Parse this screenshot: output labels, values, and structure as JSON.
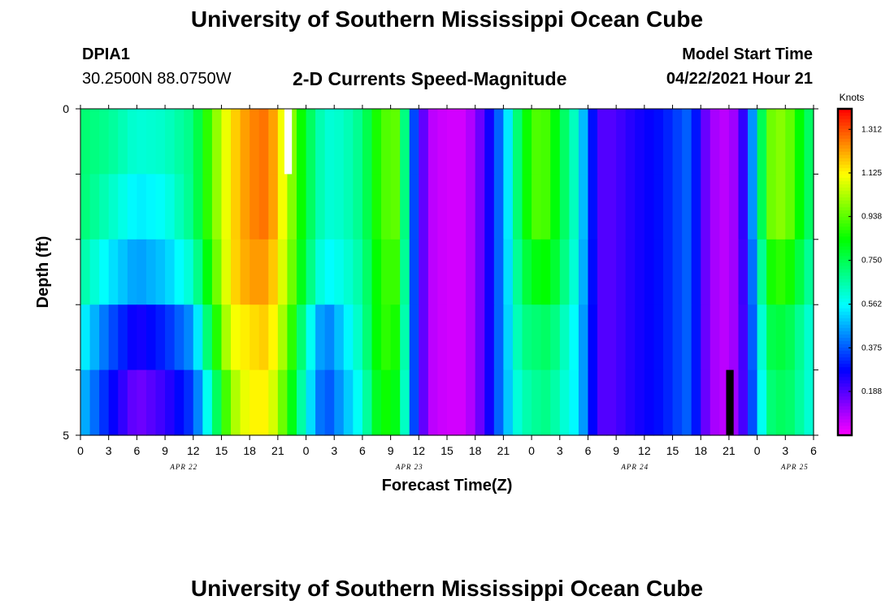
{
  "page": {
    "title_top": "University of Southern Mississippi Ocean Cube",
    "title_bottom": "University of Southern Mississippi Ocean Cube",
    "station_id": "DPIA1",
    "station_coords": "30.2500N  88.0750W",
    "model_start_label": "Model Start Time",
    "model_start_value": "04/22/2021 Hour 21"
  },
  "chart_data": {
    "type": "heatmap",
    "title": "2-D Currents Speed-Magnitude",
    "xlabel": "Forecast Time(Z)",
    "ylabel": "Depth (ft)",
    "colorbar_label": "Knots",
    "colorbar_ticks": [
      "1.312",
      "1.125",
      "0.938",
      "0.750",
      "0.562",
      "0.375",
      "0.188"
    ],
    "colorbar_tick_values": [
      1.312,
      1.125,
      0.938,
      0.75,
      0.562,
      0.375,
      0.188
    ],
    "value_range": [
      0.0,
      1.4
    ],
    "xlim": [
      0,
      78
    ],
    "ylim": [
      0,
      5
    ],
    "y_axis_inverted": true,
    "y_tick_labels": [
      "0",
      "5"
    ],
    "y_tick_values": [
      0,
      5
    ],
    "x_tick_labels": [
      "0",
      "3",
      "6",
      "9",
      "12",
      "15",
      "18",
      "21",
      "0",
      "3",
      "6",
      "9",
      "12",
      "15",
      "18",
      "21",
      "0",
      "3",
      "6",
      "9",
      "12",
      "15",
      "18",
      "21",
      "0",
      "3",
      "6"
    ],
    "date_labels": [
      "APR 22",
      "APR 23",
      "APR 24",
      "APR 25"
    ],
    "date_label_hours": [
      11,
      35,
      59,
      76
    ],
    "depth_rows": 5,
    "hours_per_column": 1,
    "anchor_hours": [
      0,
      3,
      6,
      9,
      12,
      14,
      16,
      18,
      20,
      22,
      24,
      26,
      28,
      30,
      32,
      34,
      35,
      37,
      39,
      41,
      43,
      45,
      47,
      48,
      49,
      50,
      53,
      55,
      56,
      57,
      59,
      62,
      65,
      66,
      68,
      70,
      72,
      73,
      75,
      78
    ],
    "surface_profile": [
      0.72,
      0.68,
      0.6,
      0.62,
      0.7,
      0.95,
      1.15,
      1.25,
      1.28,
      1.05,
      0.78,
      0.6,
      0.62,
      0.7,
      0.92,
      0.95,
      0.45,
      0.08,
      0.05,
      0.05,
      0.2,
      0.45,
      0.8,
      0.9,
      0.95,
      0.88,
      0.58,
      0.2,
      0.18,
      0.2,
      0.25,
      0.3,
      0.4,
      0.2,
      0.06,
      0.12,
      0.55,
      0.95,
      1.0,
      0.68
    ],
    "depth_offsets": [
      [
        0,
        0,
        0,
        0,
        0,
        0,
        0,
        0,
        0,
        0,
        0,
        0,
        0,
        0,
        0,
        0,
        0,
        0,
        0,
        0,
        0,
        0,
        0,
        0,
        0,
        0,
        0,
        0,
        0,
        0,
        0,
        0,
        0,
        0,
        0,
        0,
        0,
        0,
        0,
        0
      ],
      [
        0,
        -0.05,
        -0.06,
        -0.05,
        0,
        0,
        0,
        0,
        0,
        0,
        0,
        0,
        0,
        0,
        0,
        0,
        0,
        0,
        0,
        0,
        0,
        0,
        0,
        0,
        0,
        0,
        0,
        0,
        0,
        0,
        0,
        0,
        0,
        0,
        0,
        0,
        0,
        0,
        0,
        0
      ],
      [
        -0.05,
        -0.14,
        -0.15,
        -0.12,
        -0.08,
        -0.05,
        0,
        -0.02,
        -0.05,
        -0.02,
        -0.04,
        -0.05,
        -0.03,
        -0.03,
        -0.02,
        -0.05,
        0,
        0,
        0,
        0,
        0,
        0,
        -0.05,
        -0.1,
        -0.1,
        -0.05,
        -0.02,
        0,
        0,
        0,
        0,
        0,
        0,
        0,
        0,
        0,
        -0.05,
        -0.1,
        -0.1,
        -0.05
      ],
      [
        -0.15,
        -0.3,
        -0.35,
        -0.3,
        -0.25,
        -0.15,
        -0.05,
        -0.1,
        -0.1,
        -0.08,
        -0.15,
        -0.2,
        -0.1,
        -0.05,
        -0.02,
        -0.1,
        0,
        0,
        0,
        0,
        0,
        0,
        -0.1,
        -0.2,
        -0.22,
        -0.15,
        -0.05,
        0,
        0,
        0,
        0,
        0,
        0,
        0,
        0,
        0,
        -0.08,
        -0.2,
        -0.22,
        -0.1
      ],
      [
        -0.22,
        -0.38,
        -0.45,
        -0.4,
        -0.35,
        -0.3,
        -0.15,
        -0.12,
        -0.15,
        -0.15,
        -0.2,
        -0.25,
        -0.15,
        -0.1,
        -0.05,
        -0.15,
        0,
        0,
        0,
        0,
        0,
        0,
        -0.15,
        -0.25,
        -0.25,
        -0.2,
        -0.05,
        0,
        0,
        0,
        0,
        0,
        0,
        0,
        0,
        0,
        -0.1,
        -0.25,
        -0.25,
        -0.1
      ]
    ],
    "markers": [
      {
        "hour": 22,
        "row": 0,
        "color": "#ffffff"
      },
      {
        "hour": 69,
        "row": 4,
        "color": "#000000"
      }
    ]
  }
}
